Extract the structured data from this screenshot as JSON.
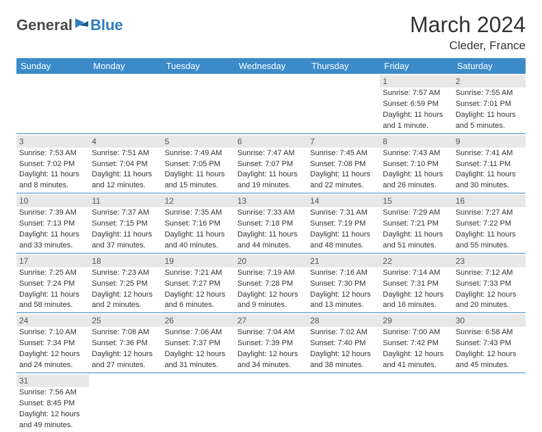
{
  "logo": {
    "general": "General",
    "blue": "Blue"
  },
  "title": "March 2024",
  "location": "Cleder, France",
  "colors": {
    "header_bar": "#3b8bc9",
    "header_text": "#ffffff",
    "day_num_bg": "#e8e8e8",
    "row_border": "#3b8bc9",
    "logo_blue": "#2d7dc0",
    "logo_grey": "#4a4a4a",
    "text": "#333333",
    "background": "#ffffff"
  },
  "weekdays": [
    "Sunday",
    "Monday",
    "Tuesday",
    "Wednesday",
    "Thursday",
    "Friday",
    "Saturday"
  ],
  "weeks": [
    [
      {
        "empty": true
      },
      {
        "empty": true
      },
      {
        "empty": true
      },
      {
        "empty": true
      },
      {
        "empty": true
      },
      {
        "num": "1",
        "sunrise": "Sunrise: 7:57 AM",
        "sunset": "Sunset: 6:59 PM",
        "daylight1": "Daylight: 11 hours",
        "daylight2": "and 1 minute."
      },
      {
        "num": "2",
        "sunrise": "Sunrise: 7:55 AM",
        "sunset": "Sunset: 7:01 PM",
        "daylight1": "Daylight: 11 hours",
        "daylight2": "and 5 minutes."
      }
    ],
    [
      {
        "num": "3",
        "sunrise": "Sunrise: 7:53 AM",
        "sunset": "Sunset: 7:02 PM",
        "daylight1": "Daylight: 11 hours",
        "daylight2": "and 8 minutes."
      },
      {
        "num": "4",
        "sunrise": "Sunrise: 7:51 AM",
        "sunset": "Sunset: 7:04 PM",
        "daylight1": "Daylight: 11 hours",
        "daylight2": "and 12 minutes."
      },
      {
        "num": "5",
        "sunrise": "Sunrise: 7:49 AM",
        "sunset": "Sunset: 7:05 PM",
        "daylight1": "Daylight: 11 hours",
        "daylight2": "and 15 minutes."
      },
      {
        "num": "6",
        "sunrise": "Sunrise: 7:47 AM",
        "sunset": "Sunset: 7:07 PM",
        "daylight1": "Daylight: 11 hours",
        "daylight2": "and 19 minutes."
      },
      {
        "num": "7",
        "sunrise": "Sunrise: 7:45 AM",
        "sunset": "Sunset: 7:08 PM",
        "daylight1": "Daylight: 11 hours",
        "daylight2": "and 22 minutes."
      },
      {
        "num": "8",
        "sunrise": "Sunrise: 7:43 AM",
        "sunset": "Sunset: 7:10 PM",
        "daylight1": "Daylight: 11 hours",
        "daylight2": "and 26 minutes."
      },
      {
        "num": "9",
        "sunrise": "Sunrise: 7:41 AM",
        "sunset": "Sunset: 7:11 PM",
        "daylight1": "Daylight: 11 hours",
        "daylight2": "and 30 minutes."
      }
    ],
    [
      {
        "num": "10",
        "sunrise": "Sunrise: 7:39 AM",
        "sunset": "Sunset: 7:13 PM",
        "daylight1": "Daylight: 11 hours",
        "daylight2": "and 33 minutes."
      },
      {
        "num": "11",
        "sunrise": "Sunrise: 7:37 AM",
        "sunset": "Sunset: 7:15 PM",
        "daylight1": "Daylight: 11 hours",
        "daylight2": "and 37 minutes."
      },
      {
        "num": "12",
        "sunrise": "Sunrise: 7:35 AM",
        "sunset": "Sunset: 7:16 PM",
        "daylight1": "Daylight: 11 hours",
        "daylight2": "and 40 minutes."
      },
      {
        "num": "13",
        "sunrise": "Sunrise: 7:33 AM",
        "sunset": "Sunset: 7:18 PM",
        "daylight1": "Daylight: 11 hours",
        "daylight2": "and 44 minutes."
      },
      {
        "num": "14",
        "sunrise": "Sunrise: 7:31 AM",
        "sunset": "Sunset: 7:19 PM",
        "daylight1": "Daylight: 11 hours",
        "daylight2": "and 48 minutes."
      },
      {
        "num": "15",
        "sunrise": "Sunrise: 7:29 AM",
        "sunset": "Sunset: 7:21 PM",
        "daylight1": "Daylight: 11 hours",
        "daylight2": "and 51 minutes."
      },
      {
        "num": "16",
        "sunrise": "Sunrise: 7:27 AM",
        "sunset": "Sunset: 7:22 PM",
        "daylight1": "Daylight: 11 hours",
        "daylight2": "and 55 minutes."
      }
    ],
    [
      {
        "num": "17",
        "sunrise": "Sunrise: 7:25 AM",
        "sunset": "Sunset: 7:24 PM",
        "daylight1": "Daylight: 11 hours",
        "daylight2": "and 58 minutes."
      },
      {
        "num": "18",
        "sunrise": "Sunrise: 7:23 AM",
        "sunset": "Sunset: 7:25 PM",
        "daylight1": "Daylight: 12 hours",
        "daylight2": "and 2 minutes."
      },
      {
        "num": "19",
        "sunrise": "Sunrise: 7:21 AM",
        "sunset": "Sunset: 7:27 PM",
        "daylight1": "Daylight: 12 hours",
        "daylight2": "and 6 minutes."
      },
      {
        "num": "20",
        "sunrise": "Sunrise: 7:19 AM",
        "sunset": "Sunset: 7:28 PM",
        "daylight1": "Daylight: 12 hours",
        "daylight2": "and 9 minutes."
      },
      {
        "num": "21",
        "sunrise": "Sunrise: 7:16 AM",
        "sunset": "Sunset: 7:30 PM",
        "daylight1": "Daylight: 12 hours",
        "daylight2": "and 13 minutes."
      },
      {
        "num": "22",
        "sunrise": "Sunrise: 7:14 AM",
        "sunset": "Sunset: 7:31 PM",
        "daylight1": "Daylight: 12 hours",
        "daylight2": "and 16 minutes."
      },
      {
        "num": "23",
        "sunrise": "Sunrise: 7:12 AM",
        "sunset": "Sunset: 7:33 PM",
        "daylight1": "Daylight: 12 hours",
        "daylight2": "and 20 minutes."
      }
    ],
    [
      {
        "num": "24",
        "sunrise": "Sunrise: 7:10 AM",
        "sunset": "Sunset: 7:34 PM",
        "daylight1": "Daylight: 12 hours",
        "daylight2": "and 24 minutes."
      },
      {
        "num": "25",
        "sunrise": "Sunrise: 7:08 AM",
        "sunset": "Sunset: 7:36 PM",
        "daylight1": "Daylight: 12 hours",
        "daylight2": "and 27 minutes."
      },
      {
        "num": "26",
        "sunrise": "Sunrise: 7:06 AM",
        "sunset": "Sunset: 7:37 PM",
        "daylight1": "Daylight: 12 hours",
        "daylight2": "and 31 minutes."
      },
      {
        "num": "27",
        "sunrise": "Sunrise: 7:04 AM",
        "sunset": "Sunset: 7:39 PM",
        "daylight1": "Daylight: 12 hours",
        "daylight2": "and 34 minutes."
      },
      {
        "num": "28",
        "sunrise": "Sunrise: 7:02 AM",
        "sunset": "Sunset: 7:40 PM",
        "daylight1": "Daylight: 12 hours",
        "daylight2": "and 38 minutes."
      },
      {
        "num": "29",
        "sunrise": "Sunrise: 7:00 AM",
        "sunset": "Sunset: 7:42 PM",
        "daylight1": "Daylight: 12 hours",
        "daylight2": "and 41 minutes."
      },
      {
        "num": "30",
        "sunrise": "Sunrise: 6:58 AM",
        "sunset": "Sunset: 7:43 PM",
        "daylight1": "Daylight: 12 hours",
        "daylight2": "and 45 minutes."
      }
    ],
    [
      {
        "num": "31",
        "sunrise": "Sunrise: 7:56 AM",
        "sunset": "Sunset: 8:45 PM",
        "daylight1": "Daylight: 12 hours",
        "daylight2": "and 49 minutes."
      },
      {
        "empty": true
      },
      {
        "empty": true
      },
      {
        "empty": true
      },
      {
        "empty": true
      },
      {
        "empty": true
      },
      {
        "empty": true
      }
    ]
  ]
}
